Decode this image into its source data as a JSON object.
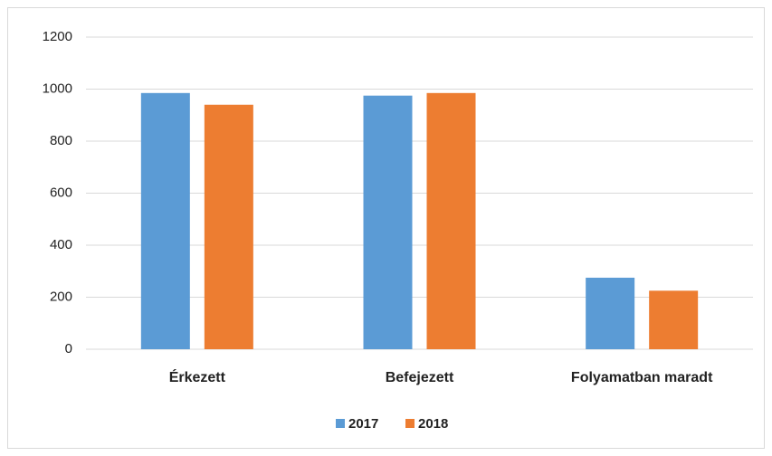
{
  "chart_data": {
    "type": "bar",
    "categories": [
      "Érkezett",
      "Befejezett",
      "Folyamatban maradt"
    ],
    "series": [
      {
        "name": "2017",
        "color": "#5b9bd5",
        "values": [
          985,
          975,
          275
        ]
      },
      {
        "name": "2018",
        "color": "#ed7d31",
        "values": [
          940,
          985,
          225
        ]
      }
    ],
    "ylim": [
      0,
      1200
    ],
    "yticks": [
      0,
      200,
      400,
      600,
      800,
      1000,
      1200
    ],
    "grid": true,
    "legend": "bottom"
  }
}
